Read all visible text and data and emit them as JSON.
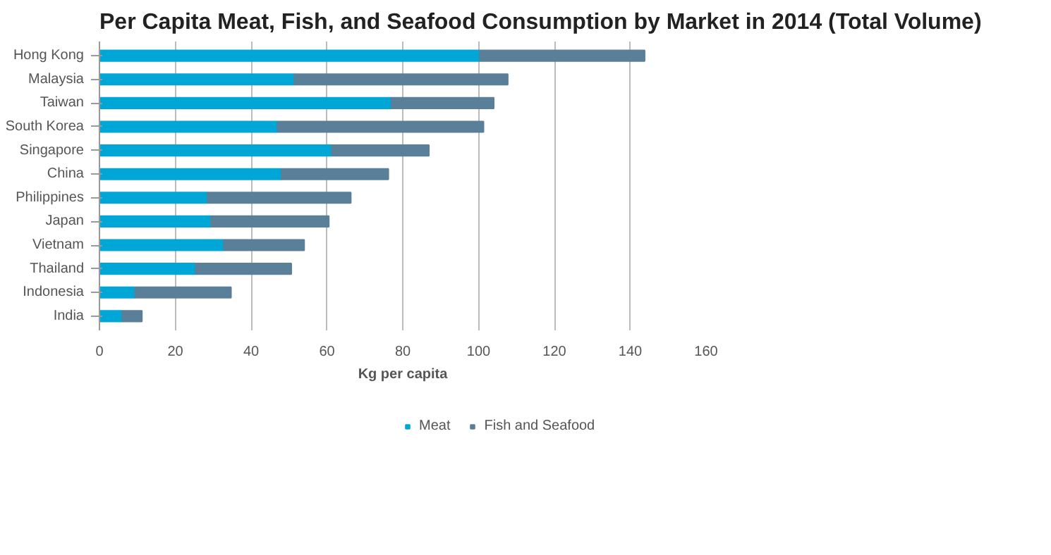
{
  "chart_data": {
    "type": "bar",
    "orientation": "horizontal",
    "stacked": true,
    "title": "Per Capita Meat, Fish, and Seafood Consumption by Market in 2014 (Total Volume)",
    "xlabel": "Kg per capita",
    "categories": [
      "Hong Kong",
      "Malaysia",
      "Taiwan",
      "South Korea",
      "Singapore",
      "China",
      "Philippines",
      "Japan",
      "Vietnam",
      "Thailand",
      "Indonesia",
      "India"
    ],
    "series": [
      {
        "name": "Meat",
        "color": "#00a6d6",
        "values": [
          100.3,
          51.4,
          77,
          47,
          61.3,
          48,
          28.5,
          29.4,
          32.8,
          25.4,
          9.4,
          6
        ]
      },
      {
        "name": "Fish and Seafood",
        "color": "#5a7f99",
        "values": [
          43.5,
          56.3,
          27,
          54.3,
          25.6,
          28.2,
          37.8,
          31.1,
          21.2,
          25.2,
          25.3,
          5.2
        ]
      }
    ],
    "xlim": [
      0,
      160
    ],
    "xticks": [
      0,
      20,
      40,
      60,
      80,
      100,
      120,
      140,
      160
    ],
    "grid": "x",
    "legend": "bottom"
  }
}
